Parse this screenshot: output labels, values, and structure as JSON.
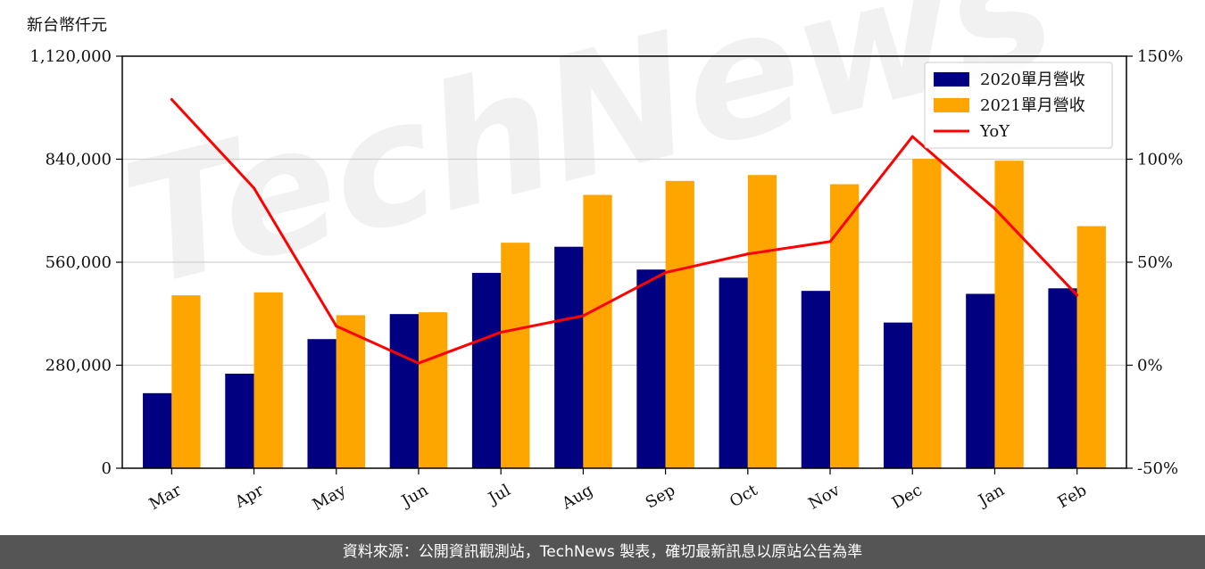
{
  "chart_data": {
    "type": "bar",
    "unit_label": "新台幣仟元",
    "categories": [
      "Mar",
      "Apr",
      "May",
      "Jun",
      "Jul",
      "Aug",
      "Sep",
      "Oct",
      "Nov",
      "Dec",
      "Jan",
      "Feb"
    ],
    "series": [
      {
        "name": "2020單月營收",
        "type": "bar",
        "axis": "left",
        "color": "#000080",
        "values": [
          204000,
          257000,
          351000,
          419000,
          531000,
          602000,
          540000,
          518000,
          482000,
          396000,
          474000,
          489000
        ]
      },
      {
        "name": "2021單月營收",
        "type": "bar",
        "axis": "left",
        "color": "#FFA500",
        "values": [
          470000,
          478000,
          416000,
          424000,
          613000,
          743000,
          781000,
          797000,
          772000,
          841000,
          836000,
          658000
        ]
      },
      {
        "name": "YoY",
        "type": "line",
        "axis": "right",
        "color": "#FF0000",
        "values": [
          129,
          86,
          19,
          1,
          16,
          24,
          45,
          54,
          60,
          111,
          76,
          34
        ]
      }
    ],
    "left_axis": {
      "ylim": [
        0,
        1120000
      ],
      "ticks": [
        0,
        280000,
        560000,
        840000,
        1120000
      ],
      "tick_labels": [
        "0",
        "280,000",
        "560,000",
        "840,000",
        "1,120,000"
      ]
    },
    "right_axis": {
      "ylim": [
        -50,
        150
      ],
      "ticks": [
        -50,
        0,
        50,
        100,
        150
      ],
      "tick_labels": [
        "-50%",
        "0%",
        "50%",
        "100%",
        "150%"
      ]
    },
    "grid": true,
    "legend_position": "top-right"
  },
  "watermark": "TechNews",
  "footer": {
    "text": "資料來源：公開資訊觀測站，TechNews 製表，確切最新訊息以原站公告為準"
  }
}
